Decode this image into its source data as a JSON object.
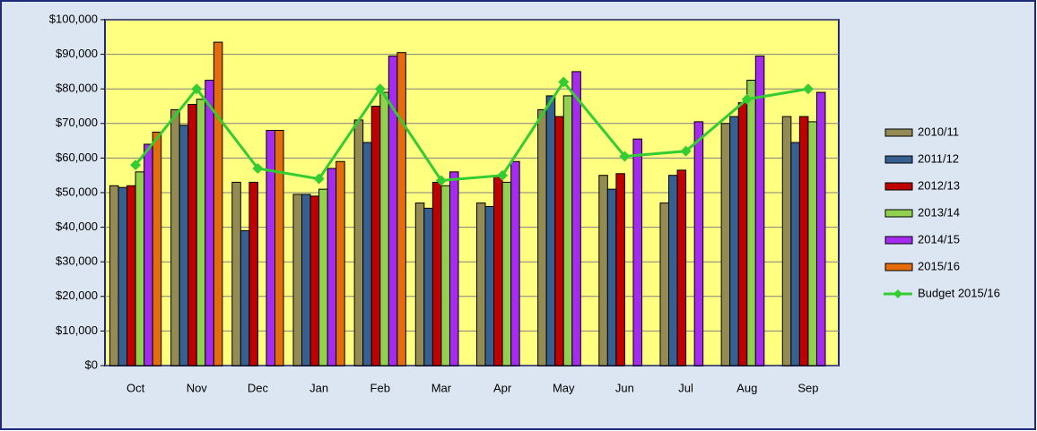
{
  "chart_data": {
    "type": "bar",
    "categories": [
      "Oct",
      "Nov",
      "Dec",
      "Jan",
      "Feb",
      "Mar",
      "Apr",
      "May",
      "Jun",
      "Jul",
      "Aug",
      "Sep"
    ],
    "series": [
      {
        "name": "2010/11",
        "color": "#948a54",
        "values": [
          52000,
          74000,
          53000,
          49500,
          71000,
          47000,
          47000,
          74000,
          55000,
          47000,
          70000,
          72000
        ]
      },
      {
        "name": "2011/12",
        "color": "#376092",
        "values": [
          51500,
          69500,
          39000,
          49500,
          64500,
          45500,
          46000,
          78000,
          51000,
          55000,
          72000,
          64500
        ]
      },
      {
        "name": "2012/13",
        "color": "#c00000",
        "values": [
          52000,
          75500,
          53000,
          49000,
          75000,
          53000,
          55000,
          72000,
          55500,
          56500,
          76000,
          72000
        ]
      },
      {
        "name": "2013/14",
        "color": "#92d050",
        "values": [
          56000,
          77000,
          null,
          51000,
          79000,
          52000,
          53000,
          78000,
          null,
          null,
          82500,
          70500
        ]
      },
      {
        "name": "2014/15",
        "color": "#a52bf0",
        "values": [
          64000,
          82500,
          68000,
          57000,
          89500,
          56000,
          59000,
          85000,
          65500,
          70500,
          89500,
          79000
        ]
      },
      {
        "name": "2015/16",
        "color": "#e46c0a",
        "values": [
          67500,
          93500,
          68000,
          59000,
          90500,
          null,
          null,
          null,
          null,
          null,
          null,
          null
        ]
      },
      {
        "name": "Budget 2015/16",
        "color": "#33cc33",
        "type": "line",
        "values": [
          58000,
          80000,
          57000,
          54000,
          80000,
          53500,
          55000,
          82000,
          60500,
          62000,
          77000,
          80000
        ]
      }
    ],
    "ylim": [
      0,
      100000
    ],
    "yticks": [
      {
        "value": 0,
        "label": "$0"
      },
      {
        "value": 10000,
        "label": "$10,000"
      },
      {
        "value": 20000,
        "label": "$20,000"
      },
      {
        "value": 30000,
        "label": "$30,000"
      },
      {
        "value": 40000,
        "label": "$40,000"
      },
      {
        "value": 50000,
        "label": "$50,000"
      },
      {
        "value": 60000,
        "label": "$60,000"
      },
      {
        "value": 70000,
        "label": "$70,000"
      },
      {
        "value": 80000,
        "label": "$80,000"
      },
      {
        "value": 90000,
        "label": "$90,000"
      },
      {
        "value": 100000,
        "label": "$100,000"
      }
    ],
    "grid": true,
    "legend": "right"
  }
}
